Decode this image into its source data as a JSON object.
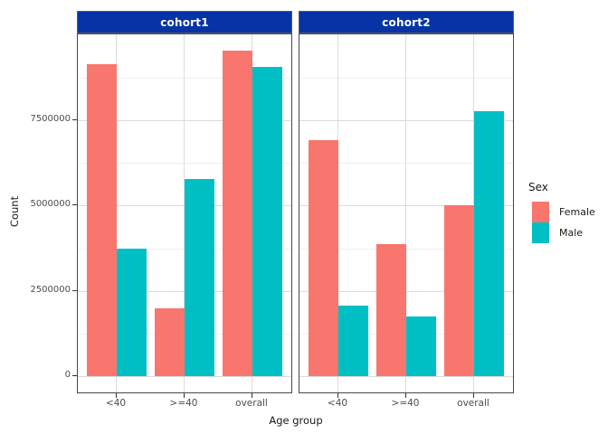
{
  "chart_data": {
    "type": "bar",
    "title": "",
    "xlabel": "Age group",
    "ylabel": "Count",
    "categories": [
      "<40",
      ">=40",
      "overall"
    ],
    "facets": [
      {
        "label": "cohort1",
        "series": [
          {
            "name": "Female",
            "values": [
              9150000,
              2000000,
              9550000
            ]
          },
          {
            "name": "Male",
            "values": [
              3740000,
              5790000,
              9060000
            ]
          }
        ]
      },
      {
        "label": "cohort2",
        "series": [
          {
            "name": "Female",
            "values": [
              6930000,
              3870000,
              5010000
            ]
          },
          {
            "name": "Male",
            "values": [
              2080000,
              1760000,
              7780000
            ]
          }
        ]
      }
    ],
    "legend": {
      "title": "Sex",
      "position": "right",
      "entries": [
        {
          "label": "Female",
          "color": "#F8766D"
        },
        {
          "label": "Male",
          "color": "#00BFC4"
        }
      ]
    },
    "y_axis": {
      "ticks": [
        0,
        2500000,
        5000000,
        7500000
      ],
      "tick_labels": [
        "0",
        "2500000",
        "5000000",
        "7500000"
      ],
      "minor_ticks": [
        1250000,
        3750000,
        6250000,
        8750000
      ],
      "limits": [
        0,
        10030000
      ],
      "grid": true
    },
    "colors": {
      "female_bar": "#F8766D",
      "male_bar": "#00BFC4",
      "strip_background": "#0634A4",
      "strip_text": "#FFFFFF",
      "grid_major": "#DBDBDB",
      "grid_minor": "#EFEFEF",
      "panel_border": "#474747",
      "axis_text": "#4D4D4D"
    }
  }
}
